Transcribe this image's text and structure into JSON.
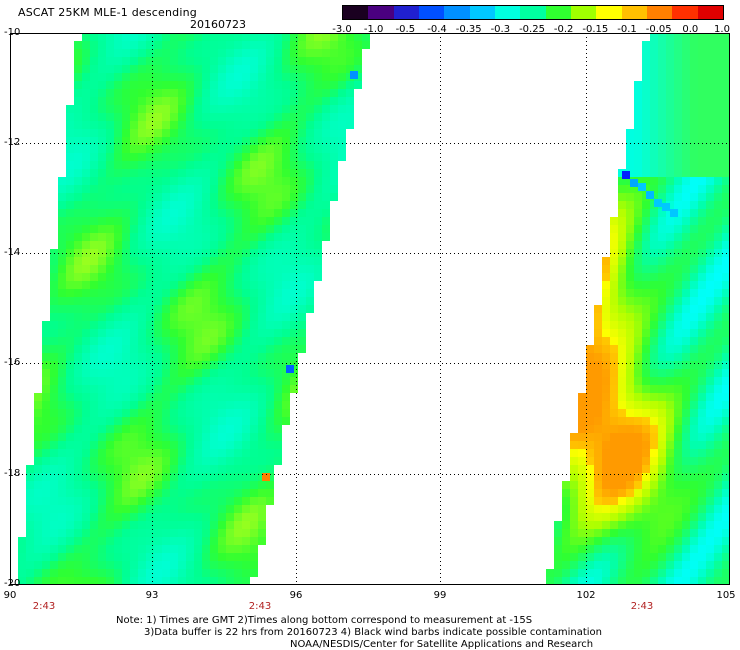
{
  "title": "ASCAT 25KM MLE-1 descending",
  "date": "20160723",
  "colorbar": {
    "labels": [
      "-3.0",
      "-1.0",
      "-0.5",
      "-0.4",
      "-0.35",
      "-0.3",
      "-0.25",
      "-0.2",
      "-0.15",
      "-0.1",
      "-0.05",
      "0.0",
      "1.0"
    ],
    "colors": [
      "#1a0020",
      "#4a0080",
      "#2020d0",
      "#0050ff",
      "#0090ff",
      "#00c8ff",
      "#00ffe0",
      "#00ffa0",
      "#30ff30",
      "#a0ff00",
      "#ffff00",
      "#ffc000",
      "#ff8000",
      "#ff3000",
      "#e00000"
    ]
  },
  "lat_labels": [
    "-10",
    "-12",
    "-14",
    "-16",
    "-18",
    "-20"
  ],
  "lon_labels": [
    "90",
    "93",
    "96",
    "99",
    "102",
    "105"
  ],
  "time_labels": [
    "2:43",
    "2:43",
    "2:43"
  ],
  "notes": [
    "Note: 1) Times are GMT 2)Times along bottom correspond to measurement at -15S",
    "3)Data buffer is 22 hrs from 20160723 4) Black wind barbs indicate possible contamination",
    "NOAA/NESDIS/Center for Satellite Applications and Research"
  ]
}
